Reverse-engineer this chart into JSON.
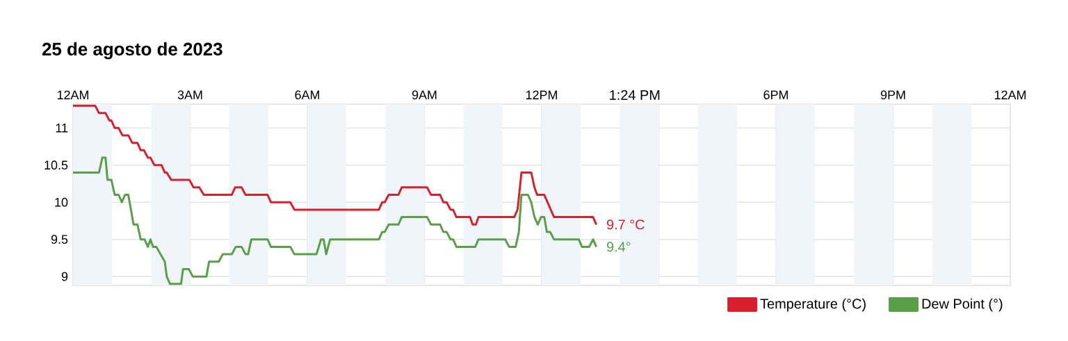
{
  "chart_data": {
    "type": "line",
    "title": "25 de agosto de 2023",
    "xlim": [
      "2023-08-25T00:00",
      "2023-08-26T00:00"
    ],
    "xticks": [
      {
        "value": "2023-08-25T00:00",
        "label": "12AM"
      },
      {
        "value": "2023-08-25T03:00",
        "label": "3AM"
      },
      {
        "value": "2023-08-25T06:00",
        "label": "6AM"
      },
      {
        "value": "2023-08-25T09:00",
        "label": "9AM"
      },
      {
        "value": "2023-08-25T12:00",
        "label": "12PM"
      },
      {
        "value": "2023-08-25T15:00",
        "label": null
      },
      {
        "value": "2023-08-25T18:00",
        "label": "6PM"
      },
      {
        "value": "2023-08-25T21:00",
        "label": "9PM"
      },
      {
        "value": "2023-08-26T00:00",
        "label": "12AM"
      }
    ],
    "ylim": [
      8.88,
      11.32
    ],
    "yticks": [
      9,
      9.5,
      10,
      10.5,
      11
    ],
    "grid": true,
    "legend": "bottom right",
    "series": [
      {
        "name": "Temperature (°C)",
        "color": "#d7202c",
        "x": [
          "2023-08-25T00:00",
          "2023-08-25T00:34",
          "2023-08-25T00:40",
          "2023-08-25T00:50",
          "2023-08-25T00:56",
          "2023-08-25T00:59",
          "2023-08-25T01:04",
          "2023-08-25T01:10",
          "2023-08-25T01:16",
          "2023-08-25T01:25",
          "2023-08-25T01:31",
          "2023-08-25T01:39",
          "2023-08-25T01:44",
          "2023-08-25T01:49",
          "2023-08-25T01:55",
          "2023-08-25T01:59",
          "2023-08-25T02:05",
          "2023-08-25T02:16",
          "2023-08-25T02:21",
          "2023-08-25T02:24",
          "2023-08-25T02:31",
          "2023-08-25T02:59",
          "2023-08-25T03:05",
          "2023-08-25T03:14",
          "2023-08-25T03:21",
          "2023-08-25T04:04",
          "2023-08-25T04:09",
          "2023-08-25T04:19",
          "2023-08-25T04:25",
          "2023-08-25T04:59",
          "2023-08-25T05:04",
          "2023-08-25T05:34",
          "2023-08-25T05:40",
          "2023-08-25T07:50",
          "2023-08-25T07:55",
          "2023-08-25T07:59",
          "2023-08-25T08:05",
          "2023-08-25T08:20",
          "2023-08-25T08:25",
          "2023-08-25T09:04",
          "2023-08-25T09:10",
          "2023-08-25T09:24",
          "2023-08-25T09:29",
          "2023-08-25T09:34",
          "2023-08-25T09:40",
          "2023-08-25T09:44",
          "2023-08-25T09:49",
          "2023-08-25T10:10",
          "2023-08-25T10:14",
          "2023-08-25T10:19",
          "2023-08-25T10:23",
          "2023-08-25T11:18",
          "2023-08-25T11:23",
          "2023-08-25T11:29",
          "2023-08-25T11:44",
          "2023-08-25T11:49",
          "2023-08-25T11:53",
          "2023-08-25T12:04",
          "2023-08-25T12:19",
          "2023-08-25T13:19",
          "2023-08-25T13:24"
        ],
        "values": [
          11.3,
          11.3,
          11.2,
          11.2,
          11.1,
          11.1,
          11.0,
          11.0,
          10.9,
          10.9,
          10.8,
          10.8,
          10.7,
          10.7,
          10.6,
          10.6,
          10.5,
          10.5,
          10.4,
          10.4,
          10.3,
          10.3,
          10.2,
          10.2,
          10.1,
          10.1,
          10.2,
          10.2,
          10.1,
          10.1,
          10.0,
          10.0,
          9.9,
          9.9,
          10.0,
          10.0,
          10.1,
          10.1,
          10.2,
          10.2,
          10.1,
          10.1,
          10.0,
          10.0,
          9.9,
          9.9,
          9.8,
          9.8,
          9.7,
          9.7,
          9.8,
          9.8,
          9.9,
          10.4,
          10.4,
          10.2,
          10.1,
          10.1,
          9.8,
          9.8,
          9.7
        ]
      },
      {
        "name": "Dew Point (°)",
        "color": "#5a9e47",
        "x": [
          "2023-08-25T00:00",
          "2023-08-25T00:40",
          "2023-08-25T00:45",
          "2023-08-25T00:50",
          "2023-08-25T00:53",
          "2023-08-25T00:59",
          "2023-08-25T01:04",
          "2023-08-25T01:10",
          "2023-08-25T01:15",
          "2023-08-25T01:20",
          "2023-08-25T01:25",
          "2023-08-25T01:33",
          "2023-08-25T01:39",
          "2023-08-25T01:44",
          "2023-08-25T01:50",
          "2023-08-25T01:55",
          "2023-08-25T01:59",
          "2023-08-25T02:03",
          "2023-08-25T02:08",
          "2023-08-25T02:21",
          "2023-08-25T02:24",
          "2023-08-25T02:29",
          "2023-08-25T02:46",
          "2023-08-25T02:49",
          "2023-08-25T02:58",
          "2023-08-25T03:04",
          "2023-08-25T03:25",
          "2023-08-25T03:29",
          "2023-08-25T03:44",
          "2023-08-25T03:50",
          "2023-08-25T04:04",
          "2023-08-25T04:10",
          "2023-08-25T04:19",
          "2023-08-25T04:25",
          "2023-08-25T04:29",
          "2023-08-25T04:34",
          "2023-08-25T04:59",
          "2023-08-25T05:04",
          "2023-08-25T05:34",
          "2023-08-25T05:40",
          "2023-08-25T06:14",
          "2023-08-25T06:21",
          "2023-08-25T06:25",
          "2023-08-25T06:29",
          "2023-08-25T06:35",
          "2023-08-25T07:50",
          "2023-08-25T07:55",
          "2023-08-25T07:59",
          "2023-08-25T08:05",
          "2023-08-25T08:20",
          "2023-08-25T08:25",
          "2023-08-25T09:04",
          "2023-08-25T09:10",
          "2023-08-25T09:24",
          "2023-08-25T09:29",
          "2023-08-25T09:34",
          "2023-08-25T09:40",
          "2023-08-25T09:44",
          "2023-08-25T09:49",
          "2023-08-25T10:18",
          "2023-08-25T10:23",
          "2023-08-25T11:04",
          "2023-08-25T11:10",
          "2023-08-25T11:20",
          "2023-08-25T11:25",
          "2023-08-25T11:29",
          "2023-08-25T11:39",
          "2023-08-25T11:44",
          "2023-08-25T11:49",
          "2023-08-25T11:54",
          "2023-08-25T11:59",
          "2023-08-25T12:04",
          "2023-08-25T12:08",
          "2023-08-25T12:13",
          "2023-08-25T12:19",
          "2023-08-25T12:57",
          "2023-08-25T13:02",
          "2023-08-25T13:13",
          "2023-08-25T13:19",
          "2023-08-25T13:24"
        ],
        "values": [
          10.4,
          10.4,
          10.6,
          10.6,
          10.3,
          10.3,
          10.1,
          10.1,
          10.0,
          10.1,
          10.1,
          9.7,
          9.7,
          9.5,
          9.5,
          9.4,
          9.5,
          9.4,
          9.4,
          9.2,
          9.0,
          8.9,
          8.9,
          9.1,
          9.1,
          9.0,
          9.0,
          9.2,
          9.2,
          9.3,
          9.3,
          9.4,
          9.4,
          9.3,
          9.3,
          9.5,
          9.5,
          9.4,
          9.4,
          9.3,
          9.3,
          9.5,
          9.5,
          9.3,
          9.5,
          9.5,
          9.6,
          9.6,
          9.7,
          9.7,
          9.8,
          9.8,
          9.7,
          9.7,
          9.6,
          9.6,
          9.5,
          9.5,
          9.4,
          9.4,
          9.5,
          9.5,
          9.4,
          9.4,
          9.6,
          10.1,
          10.1,
          10.0,
          9.8,
          9.7,
          9.8,
          9.8,
          9.6,
          9.6,
          9.5,
          9.5,
          9.4,
          9.4,
          9.5,
          9.4
        ]
      }
    ],
    "bands": [
      {
        "axis": "x",
        "from": "2023-08-25T00:00",
        "to": "2023-08-25T01:00",
        "color": "#f0f5fa"
      },
      {
        "axis": "x",
        "from": "2023-08-25T02:00",
        "to": "2023-08-25T03:00",
        "color": "#f0f5fa"
      },
      {
        "axis": "x",
        "from": "2023-08-25T04:00",
        "to": "2023-08-25T05:00",
        "color": "#f0f5fa"
      },
      {
        "axis": "x",
        "from": "2023-08-25T06:00",
        "to": "2023-08-25T07:00",
        "color": "#f0f5fa"
      },
      {
        "axis": "x",
        "from": "2023-08-25T08:00",
        "to": "2023-08-25T09:00",
        "color": "#f0f5fa"
      },
      {
        "axis": "x",
        "from": "2023-08-25T10:00",
        "to": "2023-08-25T11:00",
        "color": "#f0f5fa"
      },
      {
        "axis": "x",
        "from": "2023-08-25T12:00",
        "to": "2023-08-25T13:00",
        "color": "#f0f5fa"
      },
      {
        "axis": "x",
        "from": "2023-08-25T14:00",
        "to": "2023-08-25T15:00",
        "color": "#f0f5fa"
      },
      {
        "axis": "x",
        "from": "2023-08-25T16:00",
        "to": "2023-08-25T17:00",
        "color": "#f0f5fa"
      },
      {
        "axis": "x",
        "from": "2023-08-25T18:00",
        "to": "2023-08-25T19:00",
        "color": "#f0f5fa"
      },
      {
        "axis": "x",
        "from": "2023-08-25T20:00",
        "to": "2023-08-25T21:00",
        "color": "#f0f5fa"
      },
      {
        "axis": "x",
        "from": "2023-08-25T22:00",
        "to": "2023-08-25T23:00",
        "color": "#f0f5fa"
      }
    ],
    "annotations": [
      "1:24 PM",
      {
        "text": "9.7 °C",
        "x": "2023-08-25T13:24",
        "y": 9.7
      },
      {
        "text": "9.4°",
        "x": "2023-08-25T13:24",
        "y": 9.4
      }
    ]
  }
}
